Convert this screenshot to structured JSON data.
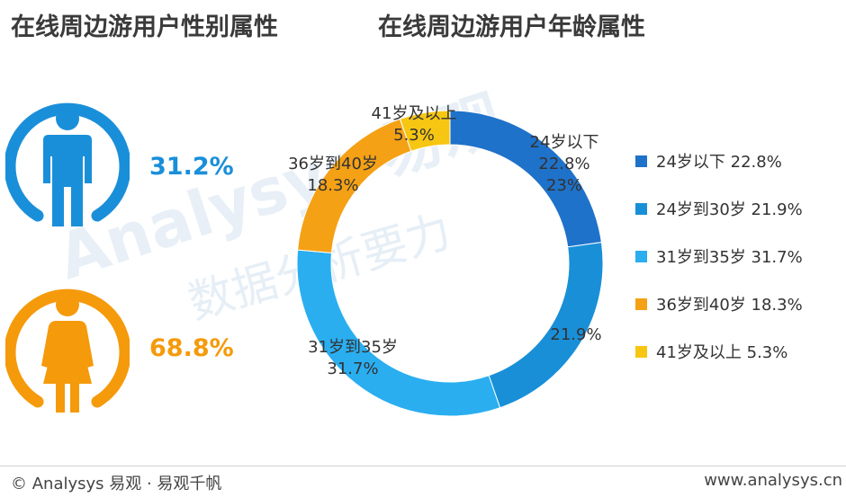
{
  "titles": {
    "gender": "在线周边游用户性别属性",
    "age": "在线周边游用户年龄属性"
  },
  "watermark": {
    "brand": "Analysys 易观",
    "slogan": "数据分析要力"
  },
  "gender": {
    "male": {
      "percent": "31.2%",
      "value": 31.2,
      "color": "#1a8fd9",
      "icon": "male-person-icon"
    },
    "female": {
      "percent": "68.8%",
      "value": 68.8,
      "color": "#f59a0b",
      "icon": "female-person-icon"
    }
  },
  "chart_data": {
    "type": "pie",
    "variant": "donut",
    "title": "在线周边游用户年龄属性",
    "legend_position": "right",
    "slices": [
      {
        "label": "24岁以下",
        "value": 22.8,
        "color": "#1f72c9",
        "data_label": [
          "24岁以下",
          "22.8%",
          "23%"
        ],
        "legend": "24岁以下  22.8%"
      },
      {
        "label": "24岁到30岁",
        "value": 21.9,
        "color": "#198fd8",
        "data_label": [
          "21.9%"
        ],
        "legend": "24岁到30岁  21.9%"
      },
      {
        "label": "31岁到35岁",
        "value": 31.7,
        "color": "#2aaef0",
        "data_label": [
          "31岁到35岁",
          "31.7%"
        ],
        "legend": "31岁到35岁  31.7%"
      },
      {
        "label": "36岁到40岁",
        "value": 18.3,
        "color": "#f5a115",
        "data_label": [
          "36岁到40岁",
          "18.3%"
        ],
        "legend": "36岁到40岁  18.3%"
      },
      {
        "label": "41岁及以上",
        "value": 5.3,
        "color": "#f7c613",
        "data_label": [
          "41岁及以上",
          "5.3%"
        ],
        "legend": "41岁及以上  5.3%"
      }
    ]
  },
  "footer": {
    "left": "© Analysys 易观 · 易观千帆",
    "right": "www.analysys.cn"
  }
}
